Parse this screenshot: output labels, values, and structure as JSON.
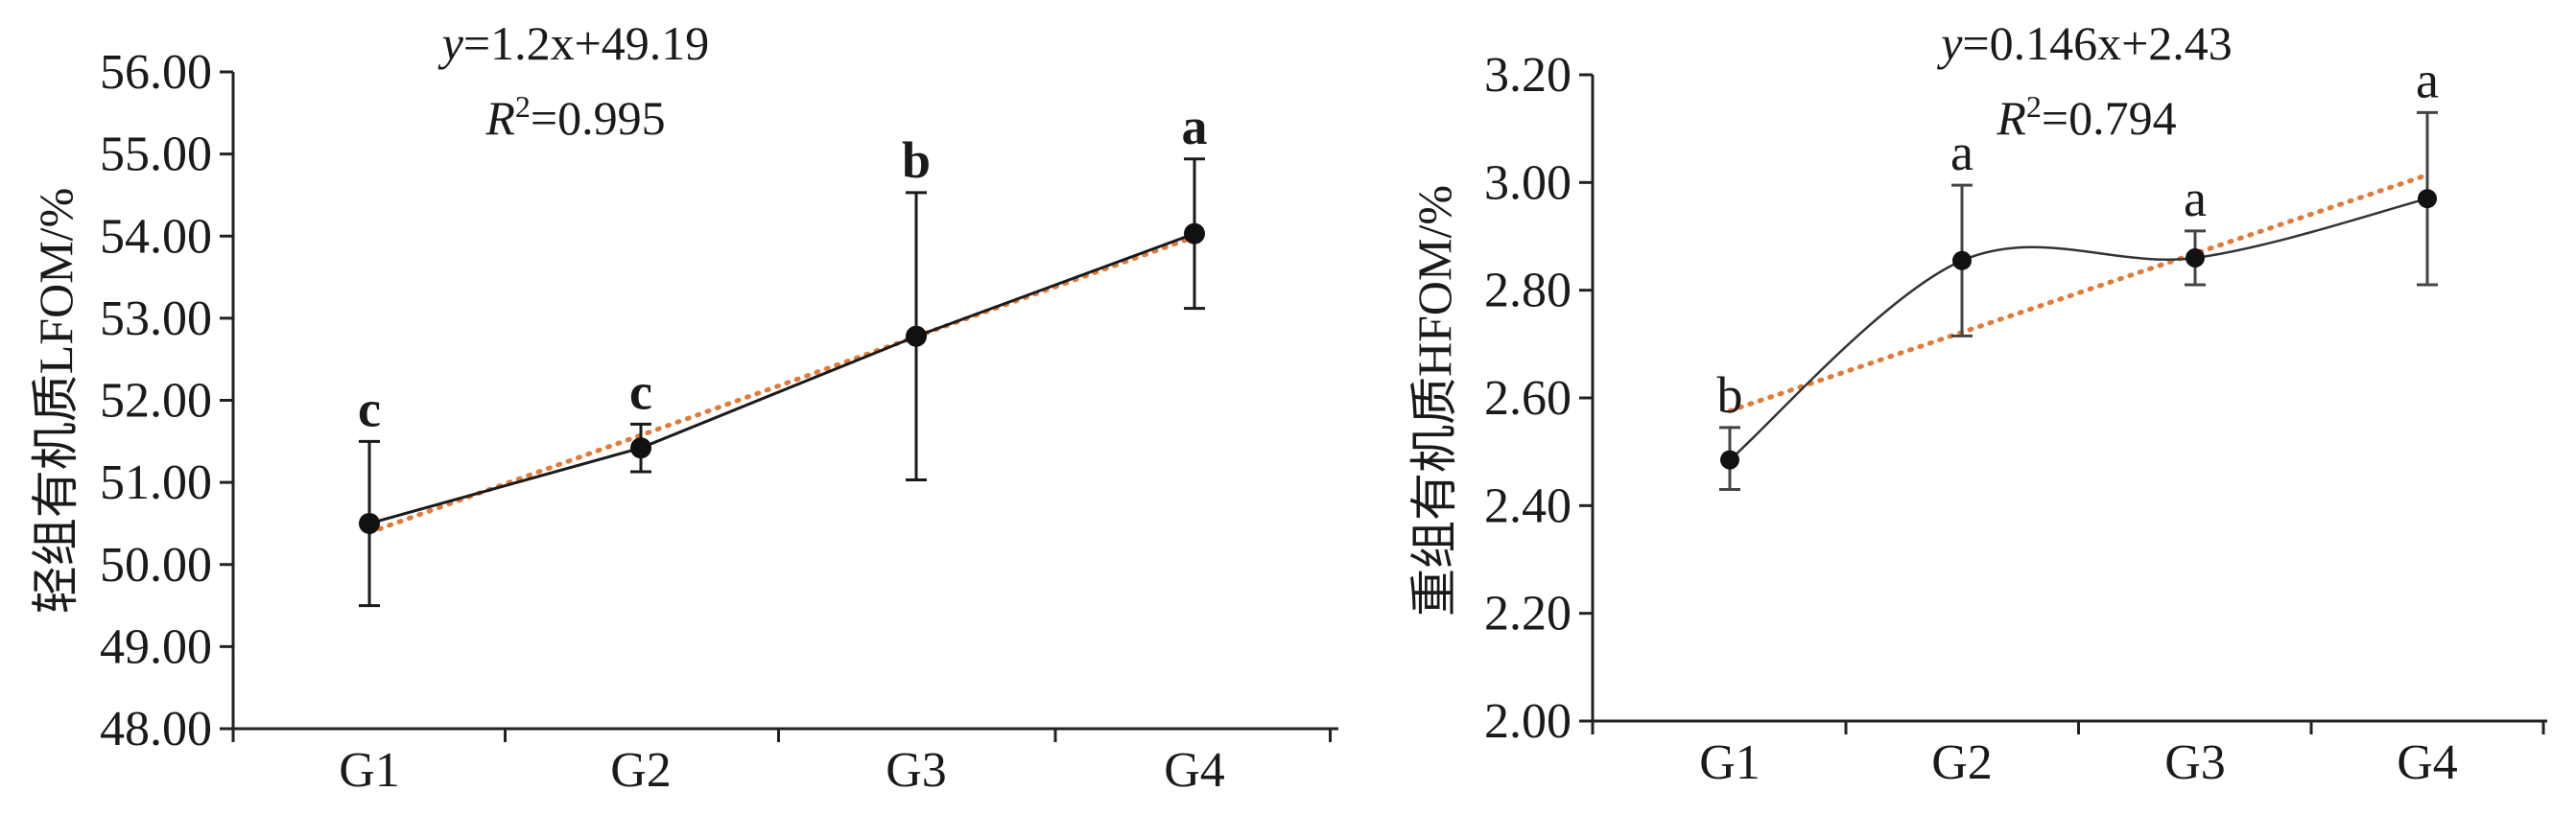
{
  "chart_data": [
    {
      "type": "line",
      "ylabel": "轻组有机质LFOM/%",
      "equation": {
        "y_part": "y",
        "eq_rest": "=1.2x+49.19",
        "r2_base": "R",
        "r2_sup": "2",
        "r2_value": "=0.995"
      },
      "categories": [
        "G1",
        "G2",
        "G3",
        "G4"
      ],
      "values": [
        50.5,
        51.42,
        52.78,
        54.03
      ],
      "error_low": [
        49.5,
        51.13,
        51.03,
        53.12
      ],
      "error_high": [
        51.5,
        51.71,
        54.53,
        54.94
      ],
      "significance": [
        "c",
        "c",
        "b",
        "a"
      ],
      "significance_bold": true,
      "trendline": {
        "slope": 1.2,
        "intercept": 49.19,
        "color": "#e07b39"
      },
      "ylim": [
        48.0,
        56.0
      ],
      "yticks": [
        "48.00",
        "49.00",
        "50.00",
        "51.00",
        "52.00",
        "53.00",
        "54.00",
        "55.00",
        "56.00"
      ],
      "smooth": false,
      "grid": false
    },
    {
      "type": "line",
      "ylabel": "重组有机质HFOM/%",
      "equation": {
        "y_part": "y",
        "eq_rest": "=0.146x+2.43",
        "r2_base": "R",
        "r2_sup": "2",
        "r2_value": "=0.794"
      },
      "categories": [
        "G1",
        "G2",
        "G3",
        "G4"
      ],
      "values": [
        2.485,
        2.855,
        2.86,
        2.97
      ],
      "error_low": [
        2.43,
        2.715,
        2.81,
        2.81
      ],
      "error_high": [
        2.545,
        2.995,
        2.91,
        3.13
      ],
      "significance": [
        "b",
        "a",
        "a",
        "a"
      ],
      "significance_bold": false,
      "trendline": {
        "slope": 0.146,
        "intercept": 2.43,
        "color": "#e07b39"
      },
      "ylim": [
        2.0,
        3.2
      ],
      "yticks": [
        "2.00",
        "2.20",
        "2.40",
        "2.60",
        "2.80",
        "3.00",
        "3.20"
      ],
      "smooth": true,
      "grid": false
    }
  ]
}
